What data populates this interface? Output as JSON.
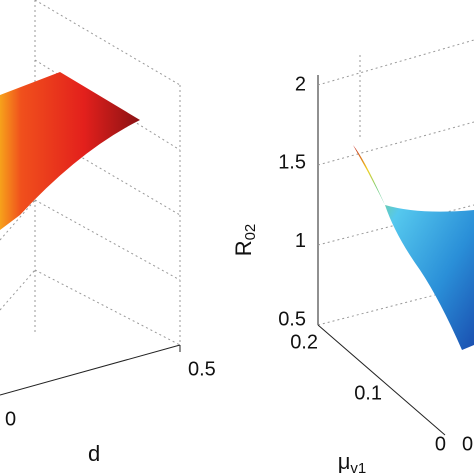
{
  "chart_data": [
    {
      "type": "surface",
      "xlabel": "d",
      "xticks": [
        0,
        0.5
      ],
      "grid": true
    },
    {
      "type": "surface",
      "zlabel": {
        "base": "R",
        "sub": "02"
      },
      "zticks": [
        0.5,
        1,
        1.5,
        2
      ],
      "ylabel": {
        "base": "μ",
        "sub": "v1"
      },
      "yticks": [
        0,
        0.1,
        0.2
      ],
      "xticks": [
        0
      ],
      "grid": true
    }
  ]
}
